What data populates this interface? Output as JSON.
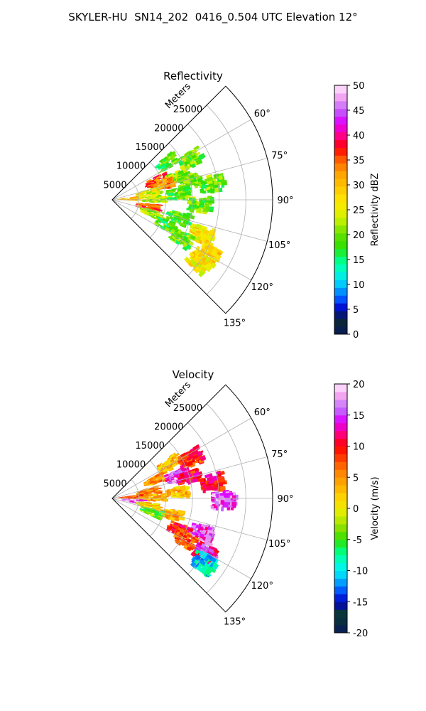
{
  "figure": {
    "title": "SKYLER-HU  SN14_202  0416_0.504 UTC Elevation 12°"
  },
  "chart_data": [
    {
      "type": "heatmap",
      "title": "Reflectivity",
      "radial_axis_label": "Meters",
      "range_ticks": [
        5000,
        10000,
        15000,
        20000,
        25000
      ],
      "range_max": 30000,
      "azimuth_ticks": [
        "60°",
        "75°",
        "90°",
        "105°",
        "120°",
        "135°"
      ],
      "azimuth_range": [
        45,
        135
      ],
      "colorbar": {
        "label": "Reflectivity dBZ",
        "ticks": [
          0,
          5,
          10,
          15,
          20,
          25,
          30,
          35,
          40,
          45,
          50
        ],
        "range": [
          0,
          50
        ]
      },
      "echo_regions": [
        {
          "az": 55,
          "r": 12000,
          "value": 18
        },
        {
          "az": 62,
          "r": 16000,
          "value": 20
        },
        {
          "az": 66,
          "r": 8500,
          "value": 35
        },
        {
          "az": 70,
          "r": 12500,
          "value": 22
        },
        {
          "az": 72,
          "r": 9500,
          "value": 33
        },
        {
          "az": 75,
          "r": 14500,
          "value": 20
        },
        {
          "az": 78,
          "r": 6500,
          "value": 25
        },
        {
          "az": 80,
          "r": 18500,
          "value": 20
        },
        {
          "az": 84,
          "r": 12000,
          "value": 19
        },
        {
          "az": 86,
          "r": 3000,
          "value": 30
        },
        {
          "az": 88,
          "r": 7500,
          "value": 22
        },
        {
          "az": 92,
          "r": 16000,
          "value": 20
        },
        {
          "az": 100,
          "r": 6500,
          "value": 35
        },
        {
          "az": 104,
          "r": 12500,
          "value": 18
        },
        {
          "az": 108,
          "r": 7500,
          "value": 22
        },
        {
          "az": 110,
          "r": 17500,
          "value": 27
        },
        {
          "az": 114,
          "r": 11000,
          "value": 18
        },
        {
          "az": 118,
          "r": 14500,
          "value": 19
        },
        {
          "az": 119,
          "r": 20000,
          "value": 28
        },
        {
          "az": 124,
          "r": 19500,
          "value": 27
        }
      ]
    },
    {
      "type": "heatmap",
      "title": "Velocity",
      "radial_axis_label": "Meters",
      "range_ticks": [
        5000,
        10000,
        15000,
        20000,
        25000
      ],
      "range_max": 30000,
      "azimuth_ticks": [
        "60°",
        "75°",
        "90°",
        "105°",
        "120°",
        "135°"
      ],
      "azimuth_range": [
        45,
        135
      ],
      "colorbar": {
        "label": "Velocity (m/s)",
        "ticks": [
          -20,
          -15,
          -10,
          -5,
          0,
          5,
          10,
          15,
          20
        ],
        "range": [
          -20,
          20
        ]
      },
      "echo_regions": [
        {
          "az": 58,
          "r": 12000,
          "value": 3
        },
        {
          "az": 62,
          "r": 16000,
          "value": 9
        },
        {
          "az": 66,
          "r": 8500,
          "value": 5
        },
        {
          "az": 70,
          "r": 12500,
          "value": 15
        },
        {
          "az": 74,
          "r": 14500,
          "value": 10
        },
        {
          "az": 78,
          "r": 6500,
          "value": 6
        },
        {
          "az": 80,
          "r": 18500,
          "value": 10
        },
        {
          "az": 84,
          "r": 12000,
          "value": 3
        },
        {
          "az": 86,
          "r": 3000,
          "value": 7
        },
        {
          "az": 88,
          "r": 7500,
          "value": 4
        },
        {
          "az": 90,
          "r": 20500,
          "value": 16
        },
        {
          "az": 96,
          "r": 3500,
          "value": 16
        },
        {
          "az": 100,
          "r": 6500,
          "value": 2
        },
        {
          "az": 104,
          "r": 11000,
          "value": 4
        },
        {
          "az": 108,
          "r": 7500,
          "value": -4
        },
        {
          "az": 110,
          "r": 17500,
          "value": 15
        },
        {
          "az": 114,
          "r": 13500,
          "value": 10
        },
        {
          "az": 118,
          "r": 15000,
          "value": 7
        },
        {
          "az": 120,
          "r": 20000,
          "value": 13
        },
        {
          "az": 124,
          "r": 20500,
          "value": -10
        }
      ]
    }
  ]
}
